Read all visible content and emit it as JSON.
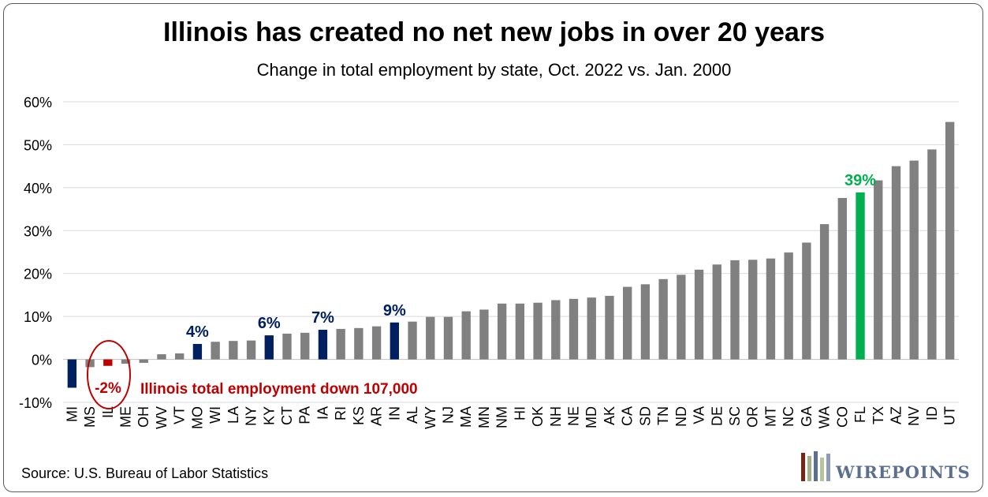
{
  "title": "Illinois has created no net new jobs in over 20 years",
  "subtitle": "Change in total employment by state, Oct. 2022 vs. Jan. 2000",
  "source": "Source: U.S. Bureau of Labor Statistics",
  "logo_text": "WIREPOINTS",
  "colors": {
    "default": "#808080",
    "highlight_navy": "#002060",
    "illinois": "#c00000",
    "florida": "#00b050",
    "gridline": "#d9d9d9"
  },
  "annotation": {
    "il_label": "-2%",
    "il_note": "Illinois total employment down 107,000"
  },
  "chart_data": {
    "type": "bar",
    "ylim": [
      -10,
      60
    ],
    "yticks": [
      -10,
      0,
      10,
      20,
      30,
      40,
      50,
      60
    ],
    "ytick_labels": [
      "-10%",
      "0%",
      "10%",
      "20%",
      "30%",
      "40%",
      "50%",
      "60%"
    ],
    "categories": [
      "MI",
      "MS",
      "IL",
      "ME",
      "OH",
      "WV",
      "VT",
      "MO",
      "WI",
      "LA",
      "NY",
      "KY",
      "CT",
      "PA",
      "IA",
      "RI",
      "KS",
      "AR",
      "IN",
      "AL",
      "WY",
      "NJ",
      "MA",
      "MN",
      "NM",
      "HI",
      "OK",
      "NH",
      "NE",
      "MD",
      "AK",
      "CA",
      "SD",
      "TN",
      "ND",
      "VA",
      "DE",
      "SC",
      "OR",
      "MT",
      "NC",
      "GA",
      "WA",
      "CO",
      "FL",
      "TX",
      "AZ",
      "NV",
      "ID",
      "UT"
    ],
    "values": [
      -6.6,
      -1.8,
      -1.5,
      -1.0,
      -0.8,
      1.2,
      1.4,
      3.6,
      4.1,
      4.3,
      4.4,
      5.6,
      6.0,
      6.2,
      6.9,
      7.1,
      7.3,
      7.7,
      8.6,
      8.8,
      9.9,
      9.9,
      11.2,
      11.6,
      13.0,
      13.0,
      13.2,
      13.8,
      14.1,
      14.4,
      14.8,
      16.9,
      17.5,
      18.7,
      19.7,
      20.9,
      22.1,
      23.1,
      23.2,
      23.5,
      24.9,
      27.2,
      31.5,
      37.6,
      38.9,
      41.7,
      45.0,
      46.3,
      48.9,
      55.3
    ],
    "colors": [
      "#002060",
      "#808080",
      "#c00000",
      "#808080",
      "#808080",
      "#808080",
      "#808080",
      "#002060",
      "#808080",
      "#808080",
      "#808080",
      "#002060",
      "#808080",
      "#808080",
      "#002060",
      "#808080",
      "#808080",
      "#808080",
      "#002060",
      "#808080",
      "#808080",
      "#808080",
      "#808080",
      "#808080",
      "#808080",
      "#808080",
      "#808080",
      "#808080",
      "#808080",
      "#808080",
      "#808080",
      "#808080",
      "#808080",
      "#808080",
      "#808080",
      "#808080",
      "#808080",
      "#808080",
      "#808080",
      "#808080",
      "#808080",
      "#808080",
      "#808080",
      "#808080",
      "#00b050",
      "#808080",
      "#808080",
      "#808080",
      "#808080",
      "#808080"
    ],
    "data_labels": [
      {
        "category": "MO",
        "text": "4%",
        "color": "#002060"
      },
      {
        "category": "KY",
        "text": "6%",
        "color": "#002060"
      },
      {
        "category": "IA",
        "text": "7%",
        "color": "#002060"
      },
      {
        "category": "IN",
        "text": "9%",
        "color": "#002060"
      },
      {
        "category": "FL",
        "text": "39%",
        "color": "#00b050"
      }
    ],
    "grid": true,
    "legend": "none"
  }
}
